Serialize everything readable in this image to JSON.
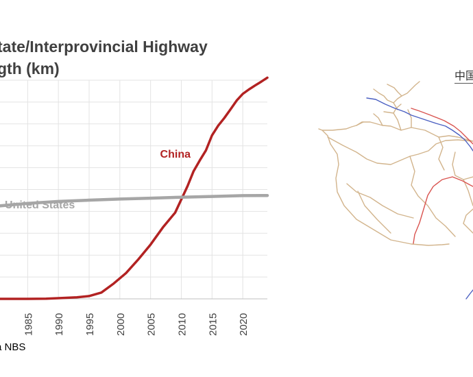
{
  "chart_data": {
    "type": "line",
    "title_lines": [
      "tate/Interprovincial Highway",
      "gth (km)"
    ],
    "xlabel": "",
    "ylabel": "",
    "xlim": [
      1980.5,
      2024
    ],
    "ylim": [
      0,
      165000
    ],
    "x_ticks": [
      1985,
      1990,
      1995,
      2000,
      2005,
      2010,
      2015,
      2020
    ],
    "grid": true,
    "legend": "inline labels",
    "series": [
      {
        "name": "China",
        "color": "#b22222",
        "x": [
          1980,
          1985,
          1988,
          1990,
          1993,
          1995,
          1997,
          1999,
          2001,
          2003,
          2005,
          2007,
          2009,
          2011,
          2012,
          2013,
          2014,
          2015,
          2016,
          2017,
          2018,
          2019,
          2020,
          2021,
          2022,
          2023,
          2024
        ],
        "y": [
          0,
          0,
          147,
          522,
          1145,
          2141,
          4771,
          11605,
          19453,
          29745,
          41005,
          53913,
          65055,
          84900,
          96359,
          104438,
          111936,
          123438,
          130708,
          136449,
          142949,
          149626,
          154649,
          158000,
          161000,
          163851,
          166900
        ]
      },
      {
        "name": "United States",
        "color": "#a6a6a6",
        "x": [
          1980,
          1985,
          1990,
          1995,
          2000,
          2005,
          2010,
          2015,
          2020,
          2024
        ],
        "y": [
          70000,
          72000,
          73500,
          74500,
          75300,
          76000,
          76700,
          77300,
          77900,
          78000
        ]
      }
    ]
  },
  "source_note": "a NBS",
  "map": {
    "title": "中国"
  }
}
